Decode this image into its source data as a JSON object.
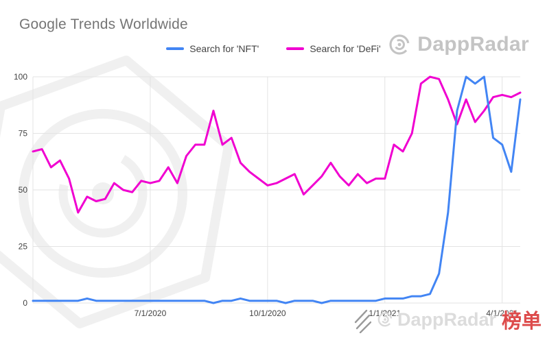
{
  "header": {
    "title": "Google Trends Worldwide",
    "title_color": "#757575"
  },
  "watermark": {
    "brand_top": "DappRadar",
    "brand_top_color": "#c4c4c4",
    "brand_bottom": "DappRadar",
    "brand_bottom_color": "#dcdcdc",
    "badge": "榜单",
    "badge_color": "#dd4b4b"
  },
  "chart_data": {
    "type": "line",
    "title": "Google Trends Worldwide",
    "xlabel": "",
    "ylabel": "",
    "ylim": [
      0,
      100
    ],
    "y_ticks": [
      0,
      25,
      50,
      75,
      100
    ],
    "x_tick_labels": [
      "7/1/2020",
      "10/1/2020",
      "1/1/2021",
      "4/1/2021"
    ],
    "x_tick_positions": [
      13,
      26,
      39,
      52
    ],
    "n_points": 55,
    "grid": true,
    "grid_color": "#e3e3e3",
    "tick_color": "#424242",
    "legend_position": "top-center",
    "series": [
      {
        "id": "nft",
        "name": "Search for 'NFT'",
        "color": "#4285f4",
        "values": [
          1,
          1,
          1,
          1,
          1,
          1,
          2,
          1,
          1,
          1,
          1,
          1,
          1,
          1,
          1,
          1,
          1,
          1,
          1,
          1,
          0,
          1,
          1,
          2,
          1,
          1,
          1,
          1,
          0,
          1,
          1,
          1,
          0,
          1,
          1,
          1,
          1,
          1,
          1,
          2,
          2,
          2,
          3,
          3,
          4,
          13,
          40,
          85,
          100,
          97,
          100,
          73,
          70,
          58,
          90
        ]
      },
      {
        "id": "defi",
        "name": "Search for 'DeFi'",
        "color": "#f000d0",
        "values": [
          67,
          68,
          60,
          63,
          55,
          40,
          47,
          45,
          46,
          53,
          50,
          49,
          54,
          53,
          54,
          60,
          53,
          65,
          70,
          70,
          85,
          70,
          73,
          62,
          58,
          55,
          52,
          53,
          55,
          57,
          48,
          52,
          56,
          62,
          56,
          52,
          57,
          53,
          55,
          55,
          70,
          67,
          75,
          97,
          100,
          99,
          90,
          79,
          90,
          80,
          85,
          91,
          92,
          91,
          93
        ]
      }
    ]
  }
}
